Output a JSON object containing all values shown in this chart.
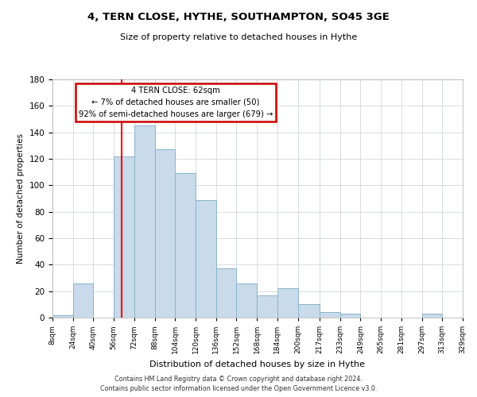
{
  "title": "4, TERN CLOSE, HYTHE, SOUTHAMPTON, SO45 3GE",
  "subtitle": "Size of property relative to detached houses in Hythe",
  "xlabel": "Distribution of detached houses by size in Hythe",
  "ylabel": "Number of detached properties",
  "bar_color": "#c9daea",
  "bar_edge_color": "#8ab4cc",
  "background_color": "#ffffff",
  "grid_color": "#c8d0d8",
  "red_line_x": 62,
  "annotation_line1": "4 TERN CLOSE: 62sqm",
  "annotation_line2": "← 7% of detached houses are smaller (50)",
  "annotation_line3": "92% of semi-detached houses are larger (679) →",
  "footer_line1": "Contains HM Land Registry data © Crown copyright and database right 2024.",
  "footer_line2": "Contains public sector information licensed under the Open Government Licence v3.0.",
  "ylim": [
    0,
    180
  ],
  "bin_edges": [
    8,
    24,
    40,
    56,
    72,
    88,
    104,
    120,
    136,
    152,
    168,
    184,
    200,
    217,
    233,
    249,
    265,
    281,
    297,
    313,
    329
  ],
  "bin_labels": [
    "8sqm",
    "24sqm",
    "40sqm",
    "56sqm",
    "72sqm",
    "88sqm",
    "104sqm",
    "120sqm",
    "136sqm",
    "152sqm",
    "168sqm",
    "184sqm",
    "200sqm",
    "217sqm",
    "233sqm",
    "249sqm",
    "265sqm",
    "281sqm",
    "297sqm",
    "313sqm",
    "329sqm"
  ],
  "counts": [
    2,
    26,
    0,
    122,
    145,
    127,
    109,
    89,
    37,
    26,
    17,
    22,
    10,
    4,
    3,
    0,
    0,
    0,
    3,
    0
  ]
}
